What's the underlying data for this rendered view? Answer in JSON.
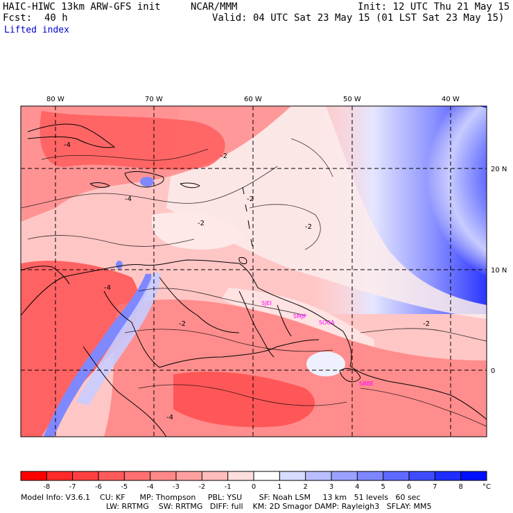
{
  "header": {
    "model_title": "HAIC-HIWC 13km ARW-GFS init",
    "center": "NCAR/MMM",
    "init": "Init: 12 UTC Thu 21 May 15",
    "fcst_label": "Fcst:",
    "fcst_value": "40 h",
    "valid": "Valid: 04 UTC Sat 23 May 15 (01 LST Sat 23 May 15)",
    "field": "Lifted index"
  },
  "map": {
    "lon_labels": [
      "80 W",
      "70 W",
      "60 W",
      "50 W",
      "40 W"
    ],
    "lat_labels": [
      "20 N",
      "10 N",
      "0"
    ],
    "stations": [
      "SJEI",
      "SMJP",
      "SOCA",
      "SBBE"
    ],
    "contour_labels": [
      "-4",
      "-2",
      "-2",
      "-2",
      "-4",
      "-2",
      "-4",
      "-2",
      "-4",
      "-2"
    ],
    "colors": {
      "strong_unstable": "#ff3c3c",
      "unstable": "#ff8c8c",
      "weak_unstable": "#ffc4c4",
      "neutral": "#fbeaea",
      "stable_weak": "#dde0ff",
      "stable": "#7a82ff",
      "stable_strong": "#1010ff"
    }
  },
  "colorbar": {
    "ticks": [
      "-8",
      "-7",
      "-6",
      "-5",
      "-4",
      "-3",
      "-2",
      "-1",
      "0",
      "1",
      "2",
      "3",
      "4",
      "5",
      "6",
      "7",
      "8"
    ],
    "unit": "°C",
    "colors": [
      "#ff0000",
      "#ff2a2a",
      "#ff4040",
      "#ff5a5a",
      "#ff7070",
      "#ff8888",
      "#ffa0a0",
      "#ffbcbc",
      "#ffdede",
      "#ffffff",
      "#d8dcff",
      "#b8beff",
      "#9aa2ff",
      "#7c86ff",
      "#5e6aff",
      "#3e4cff",
      "#1e2eff",
      "#0010ff"
    ]
  },
  "footer": {
    "line1": "Model Info: V3.6.1    CU: KF      MP: Thompson     PBL: YSU       SF: Noah LSM     13 km   51 levels   60 sec",
    "line2": "LW: RRTMG    SW: RRTMG   DIFF: full    KM: 2D Smagor DAMP: Rayleigh3   SFLAY: MM5"
  }
}
